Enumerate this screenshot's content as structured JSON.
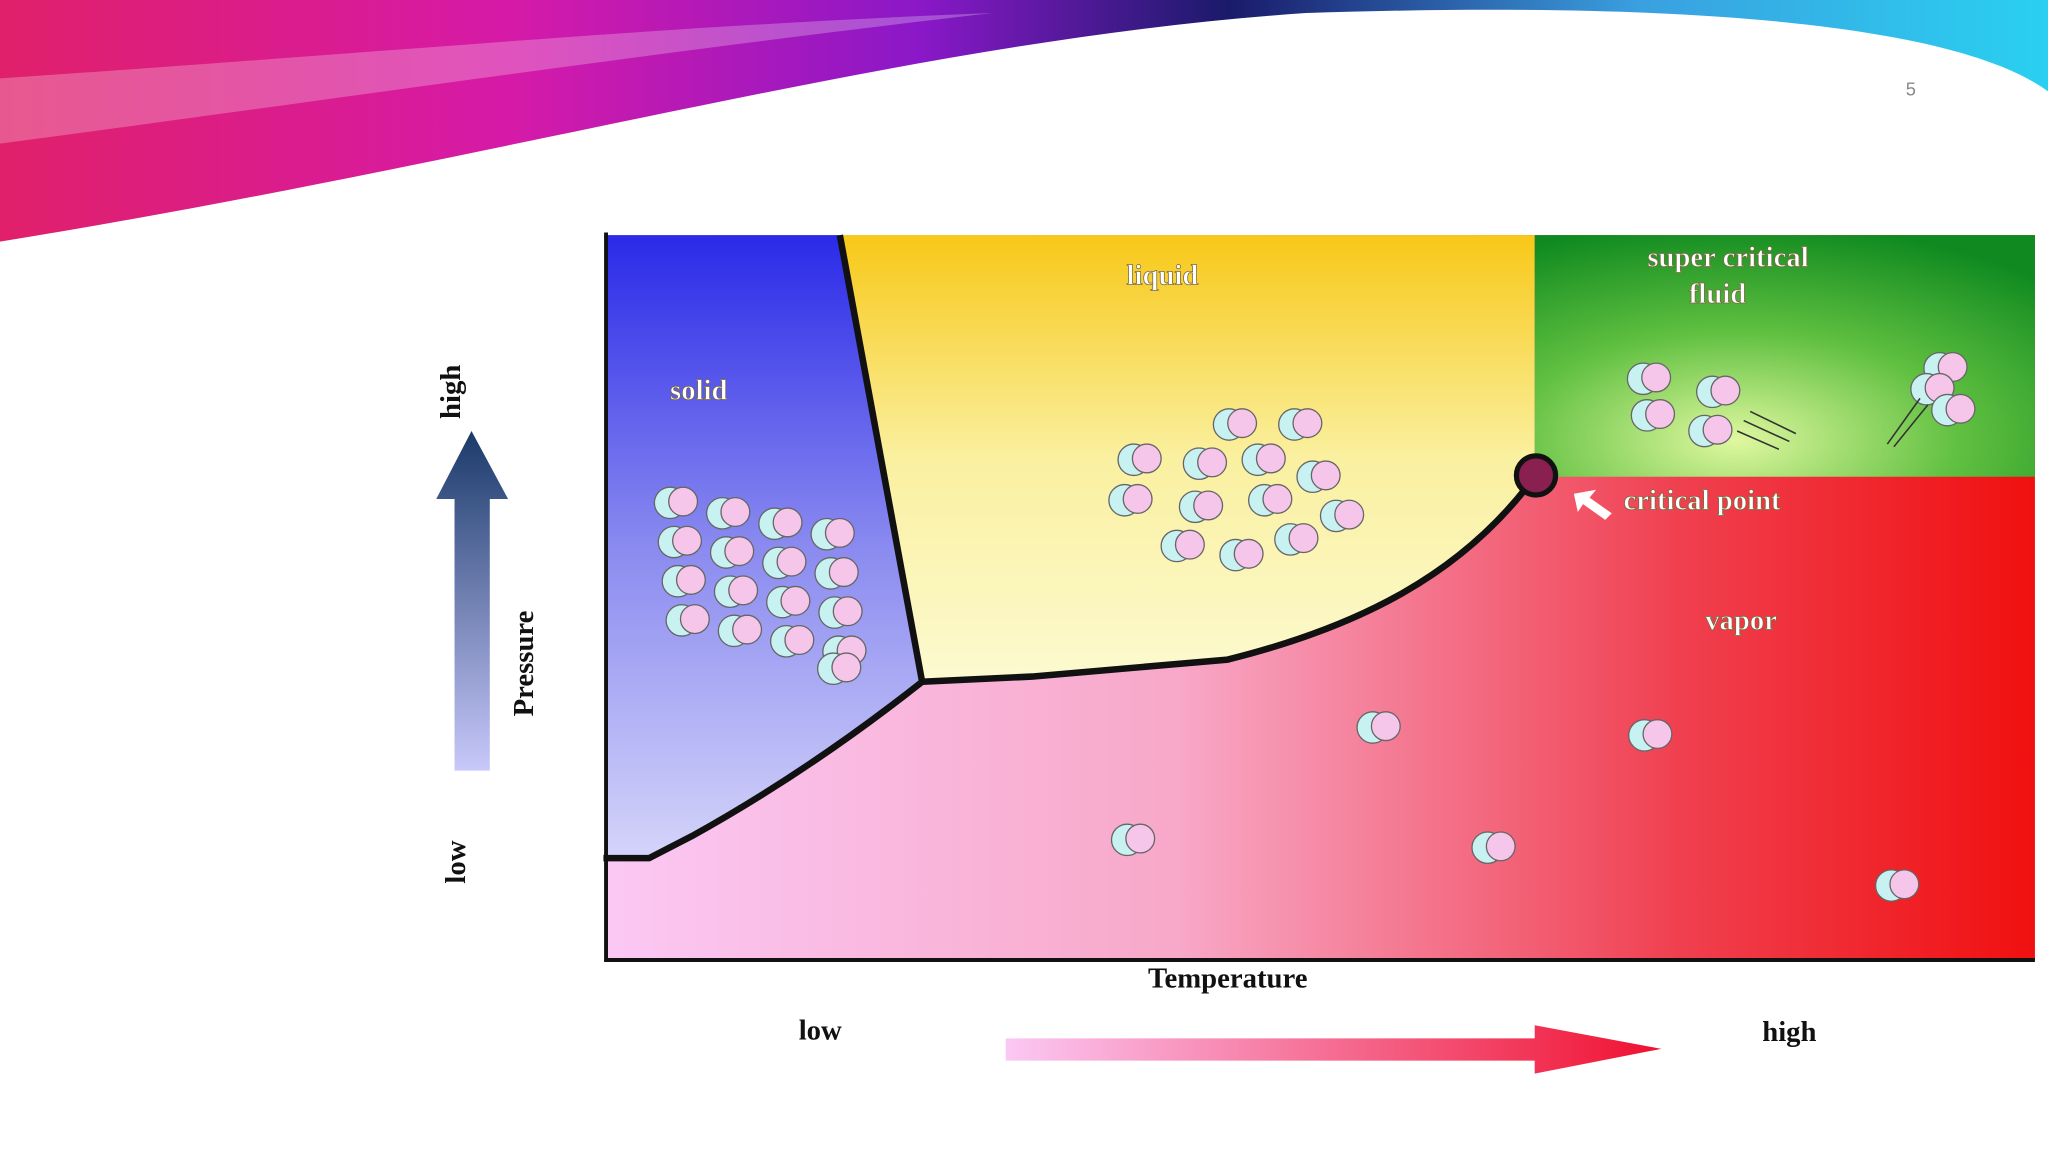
{
  "slide_number": "5",
  "diagram": {
    "regions": {
      "solid": "solid",
      "liquid": "liquid",
      "supercritical": [
        "super critical",
        "fluid"
      ],
      "vapor": "vapor"
    },
    "critical_point": "critical point",
    "x_axis": {
      "label": "Temperature",
      "low": "low",
      "high": "high"
    },
    "y_axis": {
      "label": "Pressure",
      "low": "low",
      "high": "high"
    }
  }
}
